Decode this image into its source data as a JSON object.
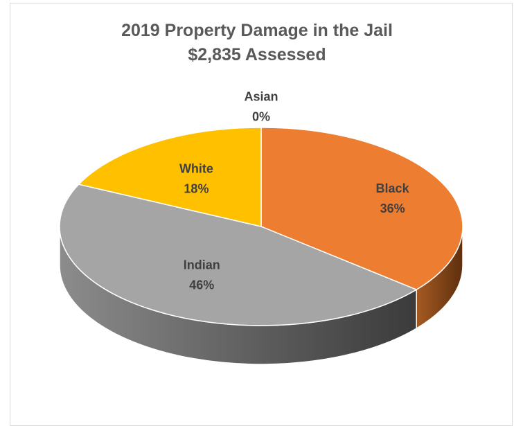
{
  "chart_data": {
    "type": "pie",
    "title": "2019 Property Damage in the Jail",
    "subtitle": "$2,835 Assessed",
    "categories": [
      "Black",
      "Indian",
      "White",
      "Asian"
    ],
    "values": [
      36,
      46,
      18,
      0
    ],
    "value_labels": [
      "36%",
      "46%",
      "18%",
      "0%"
    ],
    "colors": [
      "#ED7D31",
      "#A5A5A5",
      "#FFC000",
      "#4472C4"
    ],
    "style": "3d",
    "legend": "none"
  }
}
